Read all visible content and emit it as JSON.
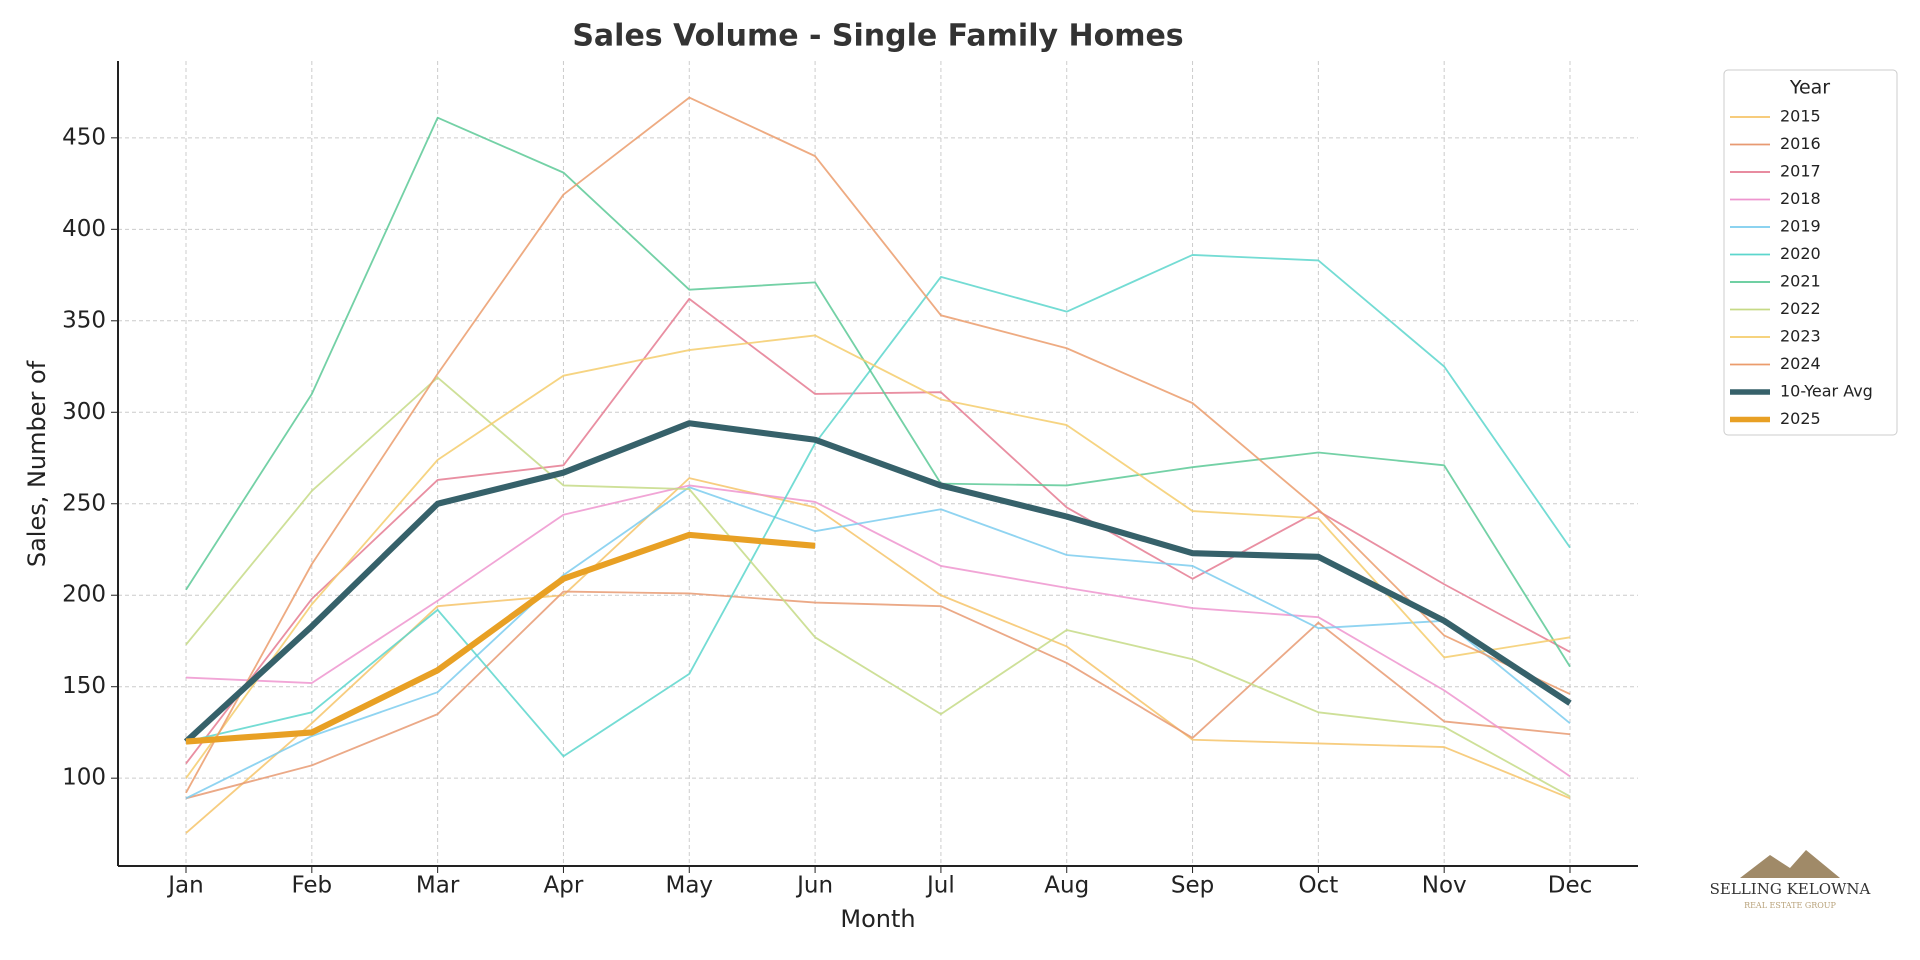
{
  "chart_data": {
    "type": "line",
    "title": "Sales Volume - Single Family Homes",
    "xlabel": "Month",
    "ylabel": "Sales, Number of",
    "categories": [
      "Jan",
      "Feb",
      "Mar",
      "Apr",
      "May",
      "Jun",
      "Jul",
      "Aug",
      "Sep",
      "Oct",
      "Nov",
      "Dec"
    ],
    "ylim": [
      52,
      492
    ],
    "yticks": [
      100,
      150,
      200,
      250,
      300,
      350,
      400,
      450
    ],
    "grid": true,
    "legend_title": "Year",
    "legend": "upper right outside",
    "series": [
      {
        "name": "2015",
        "color": "#f6c46a",
        "linewidth": 1.5,
        "values": [
          70,
          130,
          194,
          200,
          264,
          248,
          200,
          172,
          121,
          119,
          117,
          89
        ]
      },
      {
        "name": "2016",
        "color": "#e89a72",
        "linewidth": 1.5,
        "values": [
          89,
          107,
          135,
          202,
          201,
          196,
          194,
          163,
          122,
          185,
          131,
          124
        ]
      },
      {
        "name": "2017",
        "color": "#e57b92",
        "linewidth": 1.5,
        "values": [
          108,
          198,
          263,
          271,
          362,
          310,
          311,
          248,
          209,
          246,
          206,
          169
        ]
      },
      {
        "name": "2018",
        "color": "#ee95cf",
        "linewidth": 1.5,
        "values": [
          155,
          152,
          197,
          244,
          260,
          251,
          216,
          204,
          193,
          188,
          148,
          101
        ]
      },
      {
        "name": "2019",
        "color": "#7ccdee",
        "linewidth": 1.5,
        "values": [
          89,
          123,
          147,
          211,
          259,
          235,
          247,
          222,
          216,
          182,
          186,
          130
        ]
      },
      {
        "name": "2020",
        "color": "#5cd6cd",
        "linewidth": 1.5,
        "values": [
          120,
          136,
          192,
          112,
          157,
          283,
          374,
          355,
          386,
          383,
          325,
          226
        ]
      },
      {
        "name": "2021",
        "color": "#5cc996",
        "linewidth": 1.5,
        "values": [
          203,
          310,
          461,
          431,
          367,
          371,
          261,
          260,
          270,
          278,
          271,
          161
        ]
      },
      {
        "name": "2022",
        "color": "#c6da86",
        "linewidth": 1.5,
        "values": [
          173,
          257,
          319,
          260,
          258,
          177,
          135,
          181,
          165,
          136,
          128,
          90
        ]
      },
      {
        "name": "2023",
        "color": "#f4cd6c",
        "linewidth": 1.5,
        "values": [
          100,
          195,
          274,
          320,
          334,
          342,
          307,
          293,
          246,
          242,
          166,
          177
        ]
      },
      {
        "name": "2024",
        "color": "#eb9c6c",
        "linewidth": 1.5,
        "values": [
          92,
          217,
          321,
          419,
          472,
          440,
          353,
          335,
          305,
          247,
          178,
          146
        ]
      },
      {
        "name": "10-Year Avg",
        "color": "#36616a",
        "linewidth": 5,
        "values": [
          120,
          183,
          250,
          267,
          294,
          285,
          260,
          243,
          223,
          221,
          186,
          141
        ]
      },
      {
        "name": "2025",
        "color": "#e8a024",
        "linewidth": 5,
        "values": [
          120,
          125,
          159,
          209,
          233,
          227,
          null,
          null,
          null,
          null,
          null,
          null
        ]
      }
    ]
  },
  "logo": {
    "name": "SELLING KELOWNA",
    "tagline": "REAL ESTATE GROUP"
  }
}
